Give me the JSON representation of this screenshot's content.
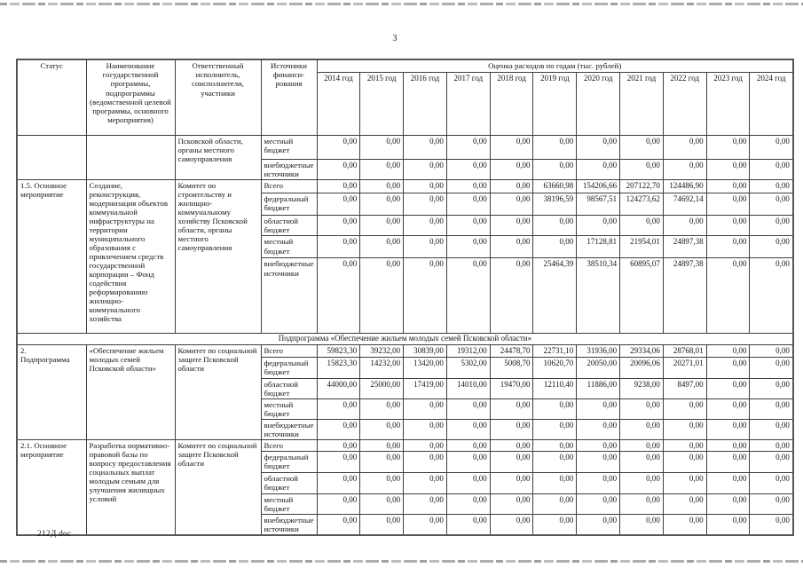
{
  "page": {
    "number": "3",
    "footer_filename": "212Д.doc"
  },
  "table": {
    "header": {
      "status": "Статус",
      "program_name": "Наименование государственной программы, подпрограммы (ведомственной целевой программы, основного мероприятия)",
      "executor": "Ответственный исполнитель, соисполнители, участники",
      "funding_source": "Источники\nфинанси-\nрования",
      "costs_title": "Оценка расходов по годам (тыс. рублей)",
      "years": [
        "2014 год",
        "2015 год",
        "2016 год",
        "2017 год",
        "2018 год",
        "2019 год",
        "2020 год",
        "2021 год",
        "2022 год",
        "2023 год",
        "2024 год"
      ]
    },
    "sections": [
      {
        "status": "",
        "program": "",
        "executor": "Псковской области, органы местного самоуправления",
        "rows": [
          {
            "source": "местный бюджет",
            "values": [
              "0,00",
              "0,00",
              "0,00",
              "0,00",
              "0,00",
              "0,00",
              "0,00",
              "0,00",
              "0,00",
              "0,00",
              "0,00"
            ]
          },
          {
            "source": "внебюджетные источники",
            "values": [
              "0,00",
              "0,00",
              "0,00",
              "0,00",
              "0,00",
              "0,00",
              "0,00",
              "0,00",
              "0,00",
              "0,00",
              "0,00"
            ]
          }
        ]
      },
      {
        "status": "1.5. Основное\nмероприятие",
        "program": "Создание, реконструкция, модернизация объектов коммунальной инфраструктуры на территории муниципального образования с привлечением средств государственной корпорации – Фонд содействия реформированию жилищно-коммунального хозяйства",
        "executor": "Комитет по строительству и жилищно-коммунальному хозяйству Псковской области, органы местного самоуправления",
        "rows": [
          {
            "source": "Всего",
            "values": [
              "0,00",
              "0,00",
              "0,00",
              "0,00",
              "0,00",
              "63660,98",
              "154206,66",
              "207122,70",
              "124486,90",
              "0,00",
              "0,00"
            ]
          },
          {
            "source": "федеральный бюджет",
            "values": [
              "0,00",
              "0,00",
              "0,00",
              "0,00",
              "0,00",
              "38196,59",
              "98567,51",
              "124273,62",
              "74692,14",
              "0,00",
              "0,00"
            ]
          },
          {
            "source": "областной бюджет",
            "values": [
              "0,00",
              "0,00",
              "0,00",
              "0,00",
              "0,00",
              "0,00",
              "0,00",
              "0,00",
              "0,00",
              "0,00",
              "0,00"
            ]
          },
          {
            "source": "местный бюджет",
            "values": [
              "0,00",
              "0,00",
              "0,00",
              "0,00",
              "0,00",
              "0,00",
              "17128,81",
              "21954,01",
              "24897,38",
              "0,00",
              "0,00"
            ]
          },
          {
            "source": "внебюджетные источники",
            "values": [
              "0,00",
              "0,00",
              "0,00",
              "0,00",
              "0,00",
              "25464,39",
              "38510,34",
              "60895,07",
              "24897,38",
              "0,00",
              "0,00"
            ]
          }
        ]
      },
      {
        "subtitle": "Подпрограмма «Обеспечение жильем молодых семей Псковской области»"
      },
      {
        "status": "2.\nПодпрограмма",
        "program": "«Обеспечение жильем молодых семей Псковской области»",
        "executor": "Комитет по социальной защите Псковской области",
        "rows": [
          {
            "source": "Всего",
            "values": [
              "59823,30",
              "39232,00",
              "30839,00",
              "19312,00",
              "24478,70",
              "22731,10",
              "31936,00",
              "29334,06",
              "28768,01",
              "0,00",
              "0,00"
            ]
          },
          {
            "source": "федеральный бюджет",
            "values": [
              "15823,30",
              "14232,00",
              "13420,00",
              "5302,00",
              "5008,70",
              "10620,70",
              "20050,00",
              "20096,06",
              "20271,01",
              "0,00",
              "0,00"
            ]
          },
          {
            "source": "областной бюджет",
            "values": [
              "44000,00",
              "25000,00",
              "17419,00",
              "14010,00",
              "19470,00",
              "12110,40",
              "11886,00",
              "9238,00",
              "8497,00",
              "0,00",
              "0,00"
            ]
          },
          {
            "source": "местный бюджет",
            "values": [
              "0,00",
              "0,00",
              "0,00",
              "0,00",
              "0,00",
              "0,00",
              "0,00",
              "0,00",
              "0,00",
              "0,00",
              "0,00"
            ]
          },
          {
            "source": "внебюджетные источники",
            "values": [
              "0,00",
              "0,00",
              "0,00",
              "0,00",
              "0,00",
              "0,00",
              "0,00",
              "0,00",
              "0,00",
              "0,00",
              "0,00"
            ]
          }
        ]
      },
      {
        "status": "2.1. Основное\nмероприятие",
        "program": "Разработка нормативно-правовой базы по вопросу предоставления социальных выплат молодым семьям для улучшения жилищных условий",
        "executor": "Комитет по социальной защите Псковской области",
        "rows": [
          {
            "source": "Всего",
            "values": [
              "0,00",
              "0,00",
              "0,00",
              "0,00",
              "0,00",
              "0,00",
              "0,00",
              "0,00",
              "0,00",
              "0,00",
              "0,00"
            ]
          },
          {
            "source": "федеральный бюджет",
            "values": [
              "0,00",
              "0,00",
              "0,00",
              "0,00",
              "0,00",
              "0,00",
              "0,00",
              "0,00",
              "0,00",
              "0,00",
              "0,00"
            ]
          },
          {
            "source": "областной бюджет",
            "values": [
              "0,00",
              "0,00",
              "0,00",
              "0,00",
              "0,00",
              "0,00",
              "0,00",
              "0,00",
              "0,00",
              "0,00",
              "0,00"
            ]
          },
          {
            "source": "местный бюджет",
            "values": [
              "0,00",
              "0,00",
              "0,00",
              "0,00",
              "0,00",
              "0,00",
              "0,00",
              "0,00",
              "0,00",
              "0,00",
              "0,00"
            ]
          },
          {
            "source": "внебюджетные источники",
            "values": [
              "0,00",
              "0,00",
              "0,00",
              "0,00",
              "0,00",
              "0,00",
              "0,00",
              "0,00",
              "0,00",
              "0,00",
              "0,00"
            ]
          }
        ]
      }
    ]
  }
}
